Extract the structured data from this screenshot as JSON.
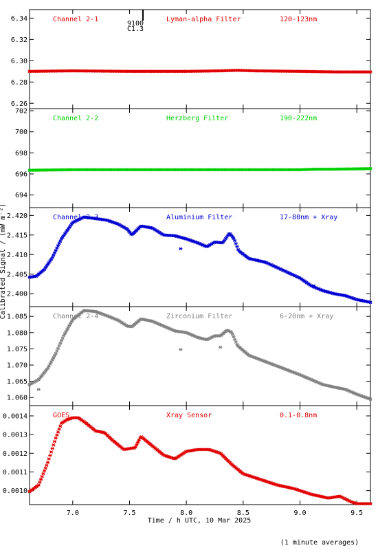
{
  "figure": {
    "ylabel": "Calibrated Signal / (mW m⁻²)",
    "xlabel": "Time / h UTC, 10 Mar 2025",
    "footnote": "(1 minute averages)",
    "top_marker": {
      "line1": "9100",
      "line2": "C1.3"
    },
    "xlim": [
      6.62,
      9.62
    ],
    "xticks": [
      {
        "value": 7.0,
        "label": "7.0"
      },
      {
        "value": 7.5,
        "label": "7.5"
      },
      {
        "value": 8.0,
        "label": "8.0"
      },
      {
        "value": 8.5,
        "label": "8.5"
      },
      {
        "value": 9.0,
        "label": "9.0"
      },
      {
        "value": 9.5,
        "label": "9.5"
      }
    ]
  },
  "chart_data": [
    {
      "type": "scatter",
      "labels": [
        "Channel 2-1",
        "Lyman-alpha Filter",
        "120-123nm"
      ],
      "color": "#e00000",
      "ylim": [
        6.255,
        6.348
      ],
      "yticks": [
        "6.26",
        "6.28",
        "6.30",
        "6.32",
        "6.34"
      ],
      "x": [
        6.62,
        7.0,
        7.5,
        8.0,
        8.3,
        8.45,
        8.6,
        9.0,
        9.3,
        9.62
      ],
      "y": [
        6.29,
        6.2905,
        6.29,
        6.29,
        6.2905,
        6.291,
        6.2905,
        6.29,
        6.2895,
        6.2895
      ]
    },
    {
      "type": "scatter",
      "labels": [
        "Channel 2-2",
        "Herzberg Filter",
        "190-222nm"
      ],
      "color": "#00d000",
      "ylim": [
        692.8,
        702.2
      ],
      "yticks": [
        "694",
        "696",
        "698",
        "700",
        "702"
      ],
      "x": [
        6.62,
        7.0,
        7.5,
        8.0,
        8.5,
        9.0,
        9.15,
        9.3,
        9.62
      ],
      "y": [
        696.35,
        696.4,
        696.4,
        696.4,
        696.4,
        696.4,
        696.45,
        696.45,
        696.5
      ]
    },
    {
      "type": "scatter",
      "labels": [
        "Channel 2-3",
        "Aluminium Filter",
        "17-80nm + Xray"
      ],
      "color": "#0000d0",
      "ylim": [
        2.3967,
        2.422
      ],
      "yticks": [
        "2.400",
        "2.405",
        "2.410",
        "2.415",
        "2.420"
      ],
      "x": [
        6.62,
        6.68,
        6.75,
        6.82,
        6.9,
        7.0,
        7.1,
        7.2,
        7.3,
        7.4,
        7.48,
        7.52,
        7.6,
        7.7,
        7.8,
        7.9,
        8.0,
        8.1,
        8.18,
        8.25,
        8.32,
        8.38,
        8.42,
        8.46,
        8.55,
        8.7,
        8.85,
        9.0,
        9.1,
        9.2,
        9.3,
        9.4,
        9.5,
        9.62
      ],
      "y": [
        2.4042,
        2.4045,
        2.4062,
        2.4092,
        2.414,
        2.4182,
        2.4196,
        2.4192,
        2.4188,
        2.4178,
        2.4165,
        2.415,
        2.4173,
        2.4168,
        2.415,
        2.4148,
        2.414,
        2.413,
        2.412,
        2.4132,
        2.413,
        2.4155,
        2.414,
        2.411,
        2.409,
        2.408,
        2.406,
        2.404,
        2.402,
        2.4008,
        2.4,
        2.3995,
        2.3985,
        2.3978
      ],
      "outliers": [
        {
          "x": 7.95,
          "y": 2.4115
        },
        {
          "x": 9.12,
          "y": 2.402
        }
      ]
    },
    {
      "type": "scatter",
      "labels": [
        "Channel 2-4",
        "Zirconium Filter",
        "6-20nm + Xray"
      ],
      "color": "#808080",
      "ylim": [
        1.0575,
        1.088
      ],
      "yticks": [
        "1.060",
        "1.065",
        "1.070",
        "1.075",
        "1.080",
        "1.085"
      ],
      "x": [
        6.62,
        6.7,
        6.78,
        6.85,
        6.92,
        7.0,
        7.1,
        7.2,
        7.3,
        7.4,
        7.48,
        7.52,
        7.6,
        7.7,
        7.8,
        7.9,
        8.0,
        8.1,
        8.18,
        8.25,
        8.3,
        8.36,
        8.4,
        8.45,
        8.55,
        8.7,
        8.85,
        9.0,
        9.1,
        9.2,
        9.3,
        9.4,
        9.5,
        9.62
      ],
      "y": [
        1.064,
        1.0655,
        1.069,
        1.0735,
        1.079,
        1.084,
        1.0868,
        1.0865,
        1.0852,
        1.0838,
        1.082,
        1.0818,
        1.0842,
        1.0835,
        1.082,
        1.0805,
        1.08,
        1.0785,
        1.0778,
        1.079,
        1.079,
        1.0808,
        1.08,
        1.076,
        1.073,
        1.071,
        1.069,
        1.067,
        1.0655,
        1.064,
        1.0632,
        1.0625,
        1.061,
        1.0595
      ],
      "outliers": [
        {
          "x": 7.95,
          "y": 1.0748
        },
        {
          "x": 8.3,
          "y": 1.0755
        },
        {
          "x": 6.7,
          "y": 1.0625
        }
      ]
    },
    {
      "type": "scatter",
      "labels": [
        "GOES",
        "Xray Sensor",
        "0.1-0.8nm"
      ],
      "color": "#e00000",
      "ylim": [
        0.000925,
        0.001455
      ],
      "yticks": [
        "0.0010",
        "0.0011",
        "0.0012",
        "0.0013",
        "0.0014"
      ],
      "x": [
        6.62,
        6.7,
        6.78,
        6.85,
        6.9,
        6.95,
        7.0,
        7.05,
        7.12,
        7.2,
        7.28,
        7.35,
        7.45,
        7.55,
        7.6,
        7.68,
        7.8,
        7.9,
        8.0,
        8.1,
        8.2,
        8.3,
        8.4,
        8.5,
        8.65,
        8.8,
        8.95,
        9.1,
        9.25,
        9.35,
        9.45,
        9.5,
        9.62
      ],
      "y": [
        0.000995,
        0.00103,
        0.00115,
        0.00128,
        0.00136,
        0.00138,
        0.00139,
        0.00139,
        0.00136,
        0.00132,
        0.00131,
        0.00127,
        0.00122,
        0.00123,
        0.00129,
        0.00125,
        0.00119,
        0.00117,
        0.00121,
        0.00122,
        0.00122,
        0.0012,
        0.00114,
        0.00109,
        0.00106,
        0.00103,
        0.00101,
        0.00098,
        0.00096,
        0.00097,
        0.00094,
        0.00093,
        0.00093
      ]
    }
  ]
}
